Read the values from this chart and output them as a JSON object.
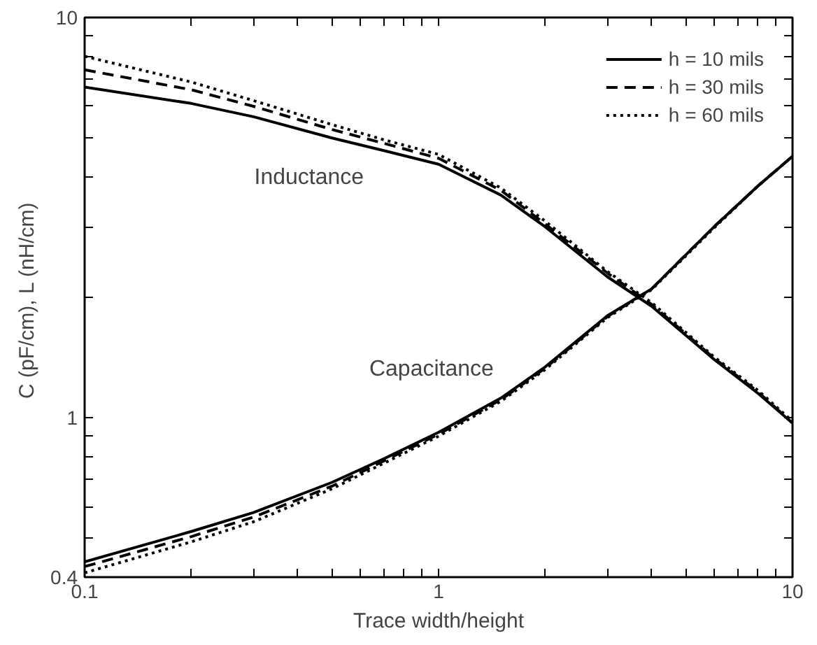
{
  "chart_data": {
    "type": "line",
    "xlabel": "Trace width/height",
    "ylabel": "C (pF/cm),  L (nH/cm)",
    "log": "xy",
    "grid": false,
    "legend": "top right",
    "xlim": [
      0.1,
      10
    ],
    "ylim": [
      0.4,
      10
    ],
    "xticks": [
      0.1,
      {
        "value": 0.2,
        "label": null
      },
      {
        "value": 0.3,
        "label": null
      },
      {
        "value": 0.4,
        "label": null
      },
      {
        "value": 0.5,
        "label": null
      },
      {
        "value": 0.6,
        "label": null
      },
      {
        "value": 0.7,
        "label": null
      },
      {
        "value": 0.8,
        "label": null
      },
      {
        "value": 0.9,
        "label": null
      },
      1,
      {
        "value": 2,
        "label": null
      },
      {
        "value": 3,
        "label": null
      },
      {
        "value": 4,
        "label": null
      },
      {
        "value": 5,
        "label": null
      },
      {
        "value": 6,
        "label": null
      },
      {
        "value": 7,
        "label": null
      },
      {
        "value": 8,
        "label": null
      },
      {
        "value": 9,
        "label": null
      },
      10
    ],
    "yticks": [
      0.4,
      {
        "value": 0.5,
        "label": null
      },
      {
        "value": 0.6,
        "label": null
      },
      {
        "value": 0.7,
        "label": null
      },
      {
        "value": 0.8,
        "label": null
      },
      {
        "value": 0.9,
        "label": null
      },
      1,
      {
        "value": 2,
        "label": null
      },
      {
        "value": 3,
        "label": null
      },
      {
        "value": 4,
        "label": null
      },
      {
        "value": 5,
        "label": null
      },
      {
        "value": 6,
        "label": null
      },
      {
        "value": 7,
        "label": null
      },
      {
        "value": 8,
        "label": null
      },
      {
        "value": 9,
        "label": null
      },
      10
    ],
    "x": [
      0.1,
      0.2,
      0.3,
      0.5,
      0.7,
      1,
      1.5,
      2,
      3,
      4,
      6,
      8,
      10
    ],
    "series": [
      {
        "name": "h = 10 mils",
        "color": "#000000",
        "line_style": "solid",
        "values": [
          6.7,
          6.1,
          5.65,
          5.0,
          4.65,
          4.3,
          3.6,
          3.0,
          2.25,
          1.9,
          1.4,
          1.15,
          0.97
        ]
      },
      {
        "name": "h = 30 mils",
        "color": "#000000",
        "line_style": "dashed",
        "values": [
          7.4,
          6.6,
          6.0,
          5.25,
          4.85,
          4.45,
          3.7,
          3.05,
          2.3,
          1.92,
          1.41,
          1.16,
          0.97
        ]
      },
      {
        "name": "h = 60 mils",
        "color": "#000000",
        "line_style": "dotted",
        "values": [
          8.0,
          6.9,
          6.2,
          5.4,
          4.95,
          4.55,
          3.75,
          3.1,
          2.32,
          1.94,
          1.42,
          1.17,
          0.98
        ]
      },
      {
        "color": "#000000",
        "line_style": "solid",
        "values": [
          0.437,
          0.52,
          0.58,
          0.69,
          0.79,
          0.92,
          1.12,
          1.34,
          1.8,
          2.1,
          3.0,
          3.8,
          4.5
        ]
      },
      {
        "color": "#000000",
        "line_style": "dashed",
        "values": [
          0.425,
          0.505,
          0.565,
          0.675,
          0.78,
          0.91,
          1.11,
          1.33,
          1.79,
          2.1,
          3.0,
          3.8,
          4.5
        ]
      },
      {
        "color": "#000000",
        "line_style": "dotted",
        "values": [
          0.41,
          0.49,
          0.55,
          0.665,
          0.77,
          0.9,
          1.1,
          1.32,
          1.78,
          2.09,
          2.98,
          3.8,
          4.5
        ]
      }
    ],
    "annotations": [
      "Inductance",
      "Capacitance"
    ]
  }
}
